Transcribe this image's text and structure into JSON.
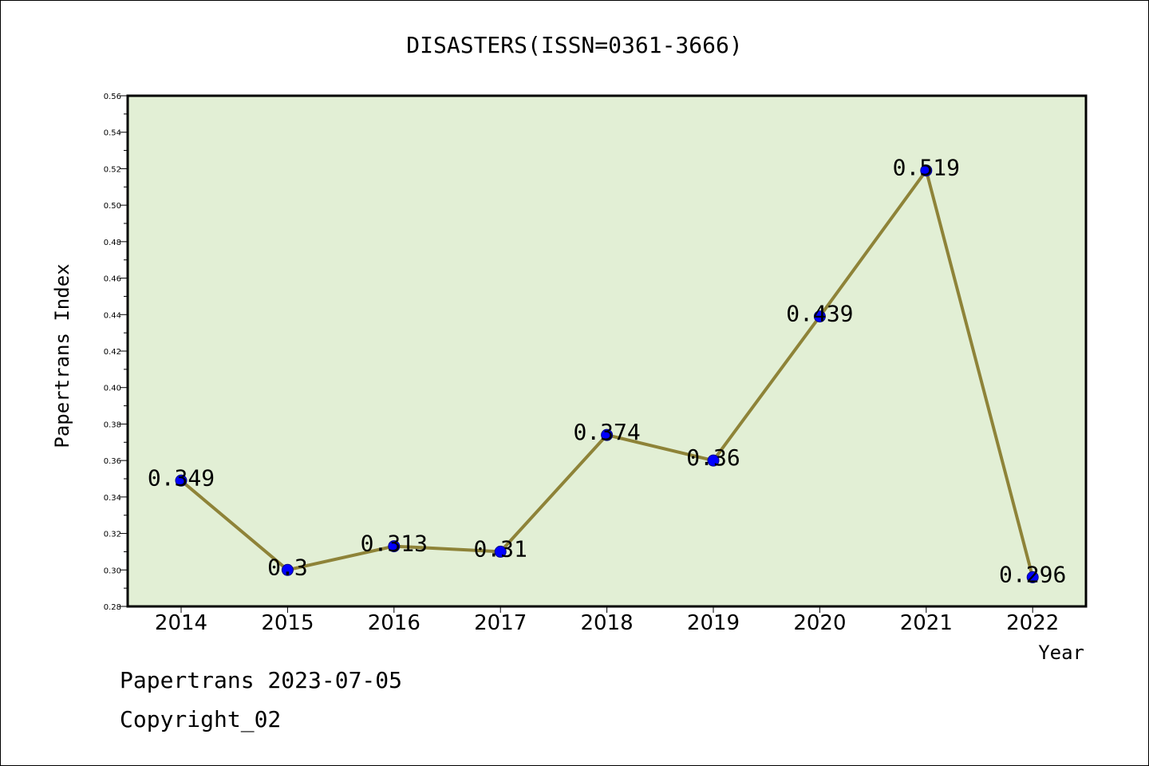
{
  "chart_data": {
    "type": "line",
    "title": "DISASTERS(ISSN=0361-3666)",
    "xlabel": "Year",
    "ylabel": "Papertrans Index",
    "categories": [
      "2014",
      "2015",
      "2016",
      "2017",
      "2018",
      "2019",
      "2020",
      "2021",
      "2022"
    ],
    "values": [
      0.349,
      0.3,
      0.313,
      0.31,
      0.374,
      0.36,
      0.439,
      0.519,
      0.296
    ],
    "data_labels": [
      "0.349",
      "0.3",
      "0.313",
      "0.31",
      "0.374",
      "0.36",
      "0.439",
      "0.519",
      "0.296"
    ],
    "ylim": [
      0.28,
      0.56
    ],
    "yticks": [
      "0.28",
      "0.30",
      "0.32",
      "0.34",
      "0.36",
      "0.38",
      "0.40",
      "0.42",
      "0.44",
      "0.46",
      "0.48",
      "0.50",
      "0.52",
      "0.54",
      "0.56"
    ],
    "grid": false,
    "legend": "none",
    "colors": {
      "plot_background": "#e2efd5",
      "line": "#8e8338",
      "marker": "#0000ff",
      "marker_edge": "#00008b"
    }
  },
  "footer": {
    "date_text": "Papertrans 2023-07-05",
    "copyright_text": "Copyright_02"
  }
}
